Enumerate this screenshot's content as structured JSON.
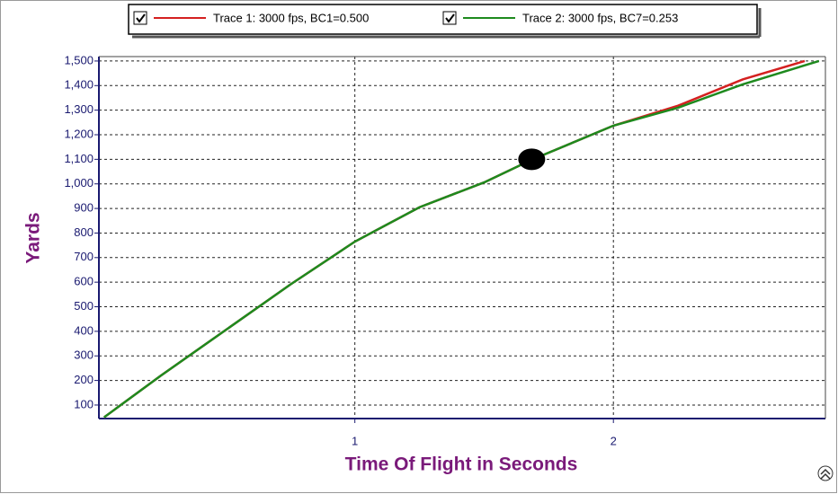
{
  "chart_data": {
    "type": "line",
    "x_label": "Time Of Flight in Seconds",
    "y_label": "Yards",
    "series": [
      {
        "name": "Trace 1: 3000 fps, BC1=0.500",
        "color": "#d42020",
        "x": [
          0.03,
          0.25,
          0.5,
          0.75,
          1.0,
          1.25,
          1.5,
          1.684,
          2.0,
          2.25,
          2.5,
          2.74
        ],
        "values": [
          50,
          220,
          405,
          590,
          765,
          905,
          1006,
          1098,
          1237,
          1318,
          1425,
          1500
        ]
      },
      {
        "name": "Trace 2: 3000 fps, BC7=0.253",
        "color": "#1e8a1e",
        "x": [
          0.03,
          0.25,
          0.5,
          0.75,
          1.0,
          1.25,
          1.5,
          1.684,
          2.0,
          2.25,
          2.5,
          2.795
        ],
        "values": [
          50,
          220,
          405,
          590,
          765,
          905,
          1006,
          1098,
          1237,
          1310,
          1405,
          1500
        ]
      }
    ],
    "highlight": {
      "x": 1.684,
      "y": 1100
    },
    "xlim": [
      0.01,
      2.82
    ],
    "xticks": [
      1,
      2
    ],
    "ylim": [
      45,
      1518
    ],
    "yticks": [
      100,
      200,
      300,
      400,
      500,
      600,
      700,
      800,
      900,
      {
        "value": 1000,
        "label": "1,000"
      },
      {
        "value": 1100,
        "label": "1,100"
      },
      {
        "value": 1200,
        "label": "1,200"
      },
      {
        "value": 1300,
        "label": "1,300"
      },
      {
        "value": 1400,
        "label": "1,400"
      },
      {
        "value": 1500,
        "label": "1,500"
      }
    ],
    "grid": true
  }
}
